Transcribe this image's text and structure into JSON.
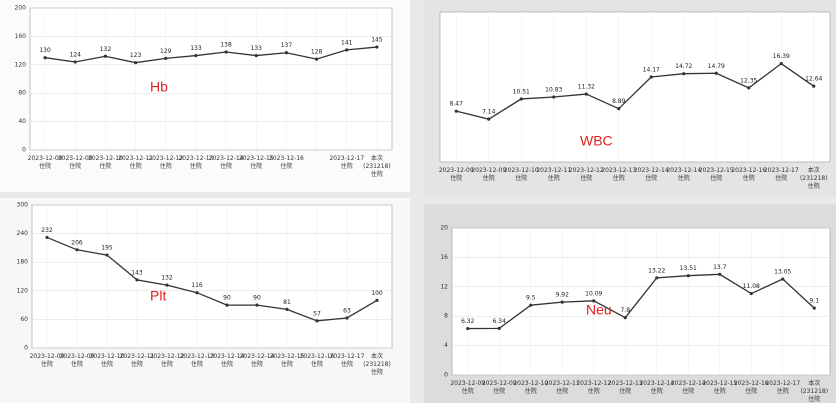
{
  "chart_data": [
    {
      "type": "line",
      "annotation": "Hb",
      "categories": [
        "2023-12-09\n住院",
        "2023-12-09\n住院",
        "2023-12-10\n住院",
        "2023-12-11\n住院",
        "2023-12-12\n住院",
        "2023-12-13\n住院",
        "2023-12-14\n住院",
        "2023-12-15\n住院",
        "2023-12-16\n住院",
        null,
        "2023-12-17\n住院",
        "本次\n(231218)\n住院"
      ],
      "values": [
        130,
        124,
        132,
        123,
        129,
        133,
        138,
        133,
        137,
        128,
        141,
        145
      ],
      "color": "#333333",
      "ylim": [
        0,
        200
      ],
      "yticks": [
        0,
        40,
        80,
        120,
        160,
        200
      ],
      "grid": true
    },
    {
      "type": "line",
      "annotation": "WBC",
      "categories": [
        "2023-12-09\n住院",
        "2023-12-09\n住院",
        "2023-12-10\n住院",
        "2023-12-11\n住院",
        "2023-12-12\n住院",
        "2023-12-13\n住院",
        "2023-12-14\n住院",
        "2023-12-14\n住院",
        "2023-12-15\n住院",
        "2023-12-16\n住院",
        "2023-12-17\n住院",
        "本次\n(231218)\n住院"
      ],
      "values": [
        8.47,
        7.14,
        10.51,
        10.83,
        11.32,
        8.89,
        14.17,
        14.72,
        14.79,
        12.35,
        16.39,
        12.64
      ],
      "color": "#333333",
      "ylim": [
        0,
        25
      ],
      "grid": true
    },
    {
      "type": "line",
      "annotation": "Plt",
      "categories": [
        "2023-12-09\n住院",
        "2023-12-09\n住院",
        "2023-12-10\n住院",
        "2023-12-11\n住院",
        "2023-12-12\n住院",
        "2023-12-13\n住院",
        "2023-12-14\n住院",
        "2023-12-14\n住院",
        "2023-12-15\n住院",
        "2023-12-16\n住院",
        "2023-12-17\n住院",
        "本次\n(231218)\n住院"
      ],
      "values": [
        232,
        206,
        195,
        143,
        132,
        116,
        90,
        90,
        81,
        57,
        63,
        100
      ],
      "color": "#333333",
      "ylim": [
        0,
        300
      ],
      "yticks": [
        0,
        60,
        120,
        180,
        240,
        300
      ],
      "grid": true
    },
    {
      "type": "line",
      "annotation": "Neu",
      "categories": [
        "2023-12-09\n住院",
        "2023-12-09\n住院",
        "2023-12-10\n住院",
        "2023-12-11\n住院",
        "2023-12-12\n住院",
        "2023-12-13\n住院",
        "2023-12-14\n住院",
        "2023-12-14\n住院",
        "2023-12-15\n住院",
        "2023-12-16\n住院",
        "2023-12-17\n住院",
        "本次\n(231218)\n住院"
      ],
      "values": [
        6.32,
        6.34,
        9.5,
        9.92,
        10.09,
        7.8,
        13.22,
        13.51,
        13.7,
        11.08,
        13.05,
        9.1
      ],
      "color": "#333333",
      "ylim": [
        0,
        20
      ],
      "yticks": [
        0,
        4,
        8,
        12,
        16,
        20
      ],
      "grid": true
    }
  ]
}
